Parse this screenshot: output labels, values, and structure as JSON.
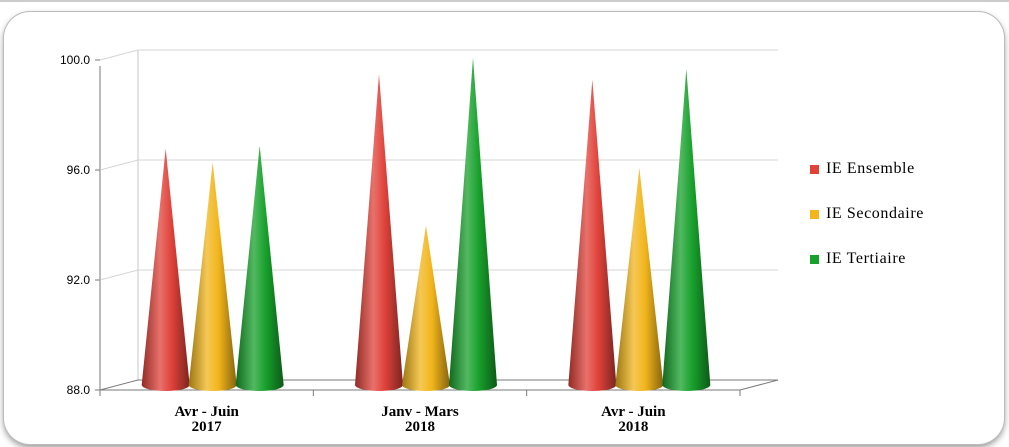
{
  "chart_data": {
    "type": "bar",
    "style": "3d-cone",
    "categories": [
      [
        "Avr - Juin",
        "2017"
      ],
      [
        "Janv - Mars",
        "2018"
      ],
      [
        "Avr - Juin",
        "2018"
      ]
    ],
    "series": [
      {
        "name": "IE Ensemble",
        "color": "#e0423a",
        "values": [
          96.6,
          99.3,
          99.1
        ]
      },
      {
        "name": "IE Secondaire",
        "color": "#f2b51c",
        "values": [
          96.1,
          93.8,
          95.9
        ]
      },
      {
        "name": "IE Tertiaire",
        "color": "#18a12c",
        "values": [
          96.7,
          99.9,
          99.5
        ]
      }
    ],
    "ylim": [
      88,
      100
    ],
    "yticks": [
      "88.0",
      "92.0",
      "96.0",
      "100.0"
    ],
    "ytick_values": [
      88,
      92,
      96,
      100
    ],
    "grid": true,
    "legend_position": "right",
    "title": "",
    "xlabel": "",
    "ylabel": ""
  }
}
